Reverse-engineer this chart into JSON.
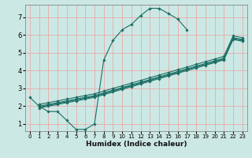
{
  "xlabel": "Humidex (Indice chaleur)",
  "ylabel": "",
  "bg_color": "#cce8e4",
  "grid_color": "#e8aaaa",
  "line_color": "#1a6e64",
  "xlim": [
    -0.5,
    23.5
  ],
  "ylim": [
    0.6,
    7.7
  ],
  "xticks": [
    0,
    1,
    2,
    3,
    4,
    5,
    6,
    7,
    8,
    9,
    10,
    11,
    12,
    13,
    14,
    15,
    16,
    17,
    18,
    19,
    20,
    21,
    22,
    23
  ],
  "yticks": [
    1,
    2,
    3,
    4,
    5,
    6,
    7
  ],
  "lines": [
    {
      "x": [
        0,
        1,
        2,
        3,
        4,
        5,
        6,
        7,
        8,
        9,
        10,
        11,
        12,
        13,
        14,
        15,
        16,
        17,
        18,
        19,
        20,
        21,
        22,
        23
      ],
      "y": [
        2.5,
        2.0,
        1.7,
        1.7,
        1.2,
        0.7,
        0.7,
        1.0,
        4.6,
        5.7,
        6.3,
        6.6,
        7.1,
        7.5,
        7.5,
        7.2,
        6.9,
        6.3,
        null,
        null,
        null,
        null,
        null,
        null
      ]
    },
    {
      "x": [
        1,
        2,
        3,
        4,
        5,
        6,
        7,
        8,
        9,
        10,
        11,
        12,
        13,
        14,
        15,
        16,
        17,
        18,
        19,
        20,
        21,
        22,
        23
      ],
      "y": [
        2.0,
        2.1,
        2.2,
        2.3,
        2.4,
        2.5,
        2.6,
        2.75,
        2.9,
        3.05,
        3.2,
        3.35,
        3.5,
        3.65,
        3.8,
        3.95,
        4.1,
        4.25,
        4.4,
        4.55,
        4.7,
        5.85,
        5.75
      ]
    },
    {
      "x": [
        1,
        2,
        3,
        4,
        5,
        6,
        7,
        8,
        9,
        10,
        11,
        12,
        13,
        14,
        15,
        16,
        17,
        18,
        19,
        20,
        21,
        22,
        23
      ],
      "y": [
        2.1,
        2.2,
        2.3,
        2.4,
        2.5,
        2.6,
        2.7,
        2.85,
        3.0,
        3.15,
        3.3,
        3.45,
        3.6,
        3.75,
        3.9,
        4.05,
        4.2,
        4.35,
        4.5,
        4.65,
        4.8,
        5.95,
        5.85
      ]
    },
    {
      "x": [
        1,
        2,
        3,
        4,
        5,
        6,
        7,
        8,
        9,
        10,
        11,
        12,
        13,
        14,
        15,
        16,
        17,
        18,
        19,
        20,
        21,
        22,
        23
      ],
      "y": [
        1.95,
        2.05,
        2.15,
        2.25,
        2.35,
        2.45,
        2.55,
        2.7,
        2.85,
        3.0,
        3.15,
        3.3,
        3.45,
        3.6,
        3.75,
        3.9,
        4.05,
        4.2,
        4.35,
        4.5,
        4.65,
        5.8,
        5.7
      ]
    },
    {
      "x": [
        1,
        2,
        3,
        4,
        5,
        6,
        7,
        8,
        9,
        10,
        11,
        12,
        13,
        14,
        15,
        16,
        17,
        18,
        19,
        20,
        21,
        22,
        23
      ],
      "y": [
        1.9,
        2.0,
        2.1,
        2.2,
        2.3,
        2.4,
        2.5,
        2.65,
        2.8,
        2.95,
        3.1,
        3.25,
        3.4,
        3.55,
        3.7,
        3.85,
        4.0,
        4.15,
        4.3,
        4.45,
        4.6,
        5.75,
        5.65
      ]
    }
  ]
}
